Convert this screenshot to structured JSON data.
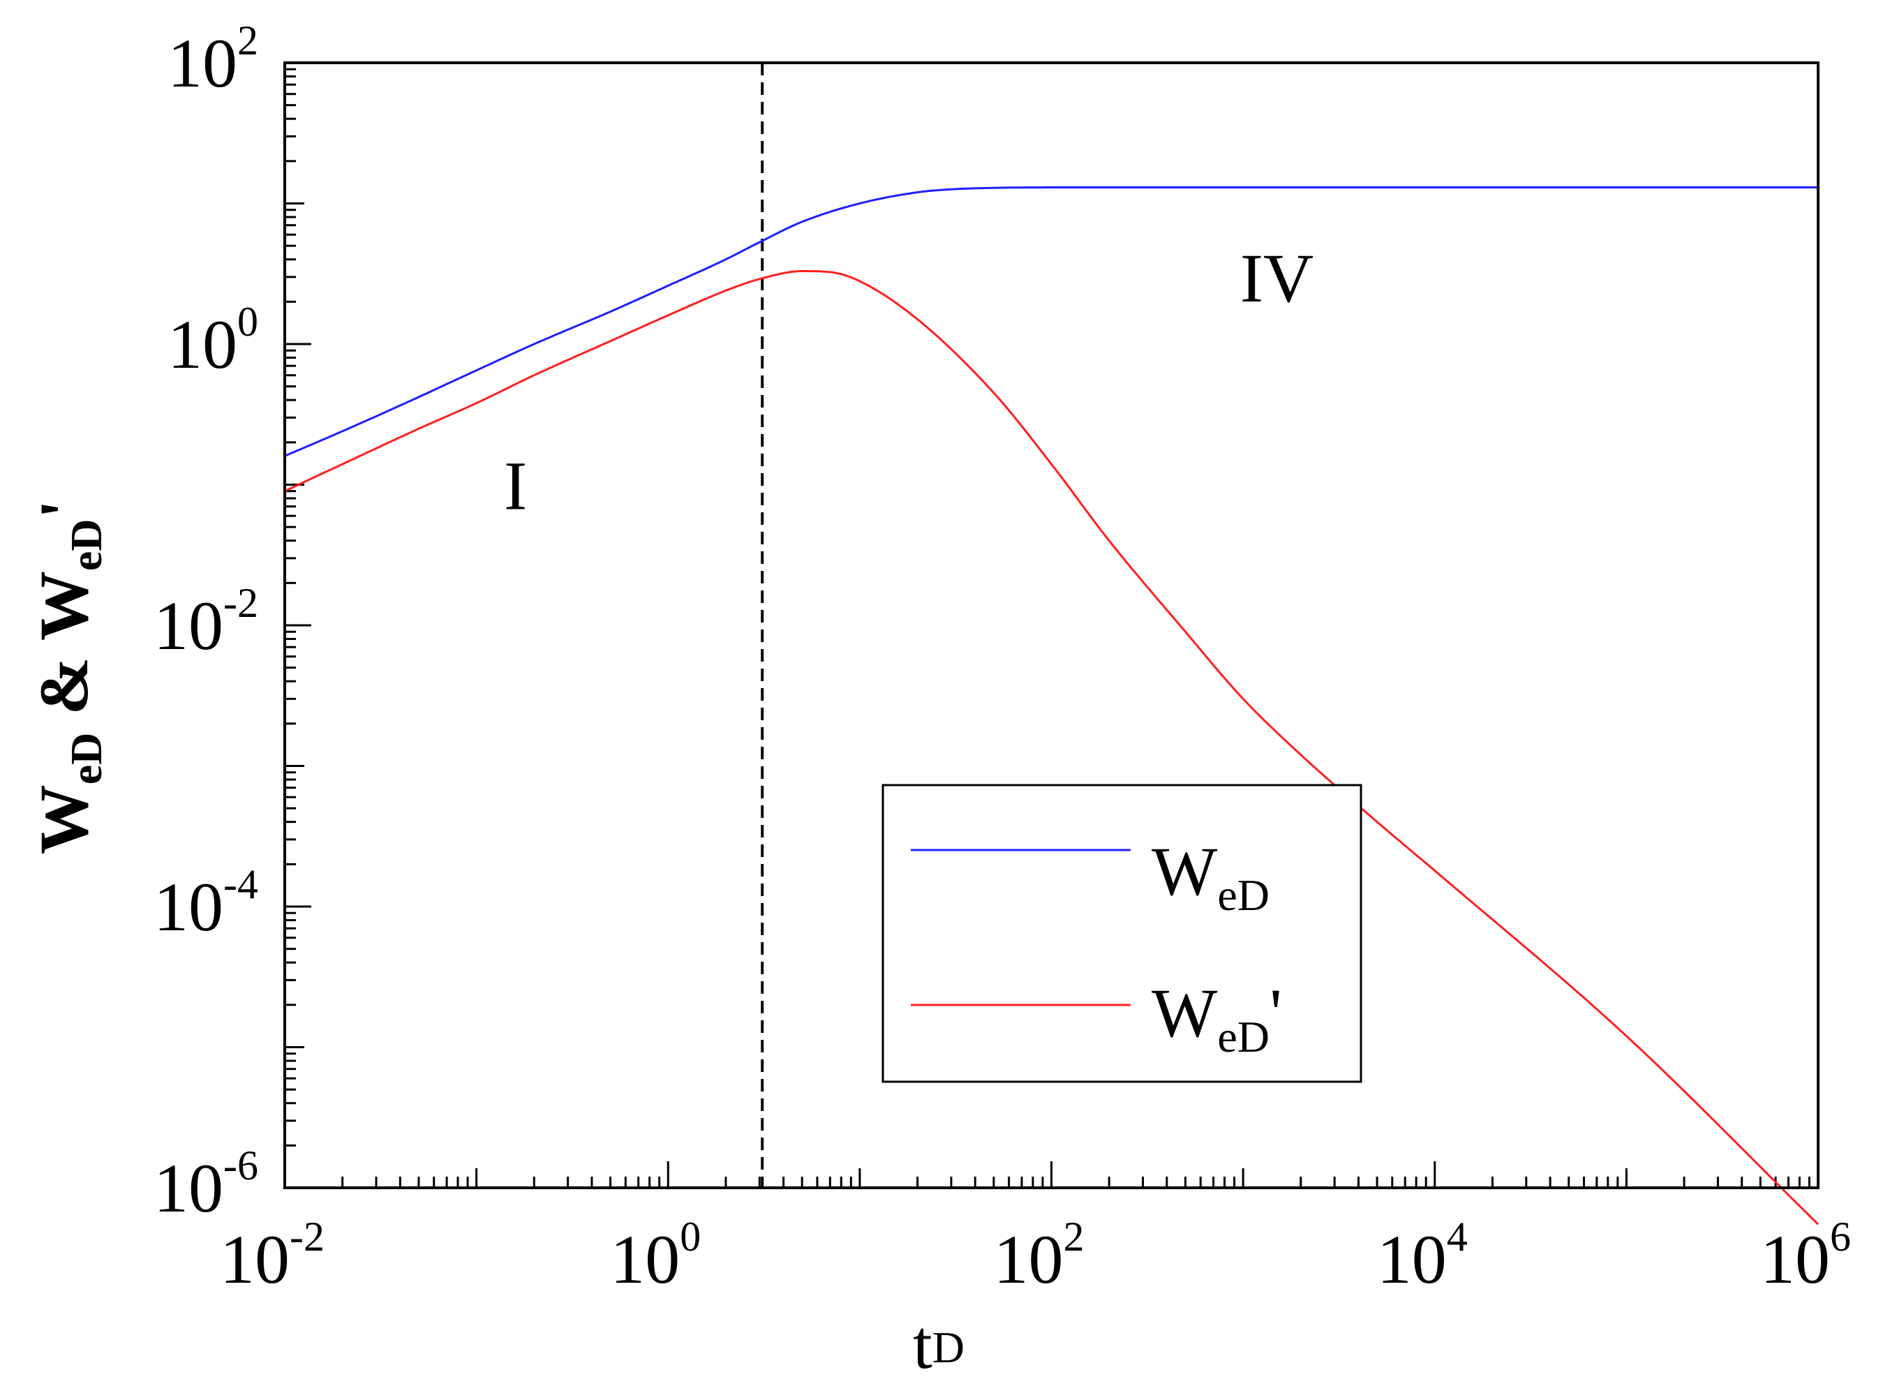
{
  "chart_data": {
    "type": "line",
    "x_scale": "log",
    "y_scale": "log",
    "xlim": [
      0.01,
      1000000
    ],
    "ylim": [
      1e-06,
      100
    ],
    "x_ticks": [
      {
        "value": 0.01,
        "base": "10",
        "exp": "-2"
      },
      {
        "value": 1,
        "base": "10",
        "exp": "0"
      },
      {
        "value": 100,
        "base": "10",
        "exp": "2"
      },
      {
        "value": 10000,
        "base": "10",
        "exp": "4"
      },
      {
        "value": 1000000,
        "base": "10",
        "exp": "6"
      }
    ],
    "y_ticks": [
      {
        "value": 1e-06,
        "base": "10",
        "exp": "-6"
      },
      {
        "value": 0.0001,
        "base": "10",
        "exp": "-4"
      },
      {
        "value": 0.01,
        "base": "10",
        "exp": "-2"
      },
      {
        "value": 1,
        "base": "10",
        "exp": "0"
      },
      {
        "value": 100,
        "base": "10",
        "exp": "2"
      }
    ],
    "xlabel": {
      "main": "t",
      "sub": "D"
    },
    "ylabel": {
      "w1": "W",
      "sub1": "eD",
      "amp": " & ",
      "w2": "W",
      "sub2": "eD",
      "prime": "'"
    },
    "vertical_line": {
      "x": 3.1,
      "style": "dashed",
      "color": "#000000"
    },
    "region_labels": [
      {
        "text": "I",
        "x": 0.16,
        "y": 0.1
      },
      {
        "text": "IV",
        "x": 1500,
        "y": 3
      }
    ],
    "legend": {
      "position": "lower-center",
      "entries": [
        {
          "main": "W",
          "sub": "eD",
          "suffix": "",
          "color": "#1f1fff"
        },
        {
          "main": "W",
          "sub": "eD",
          "suffix": "'",
          "color": "#ff2020"
        }
      ]
    },
    "series": [
      {
        "name": "WeD",
        "color": "#1f1fff",
        "x": [
          0.01,
          0.02,
          0.05,
          0.1,
          0.2,
          0.5,
          1,
          2,
          3,
          5,
          10,
          20,
          30,
          50,
          100,
          1000,
          10000,
          100000,
          1000000
        ],
        "y": [
          0.16,
          0.24,
          0.42,
          0.65,
          1.0,
          1.7,
          2.6,
          4.0,
          5.3,
          7.4,
          10.0,
          12.0,
          12.6,
          12.9,
          13.0,
          13.0,
          13.0,
          13.0,
          13.0
        ]
      },
      {
        "name": "WeD'",
        "color": "#ff2020",
        "x": [
          0.01,
          0.02,
          0.05,
          0.1,
          0.2,
          0.5,
          1,
          2,
          3,
          5,
          7,
          10,
          20,
          50,
          100,
          200,
          500,
          1000,
          2000,
          5000,
          10000,
          100000,
          1000000
        ],
        "y": [
          0.09,
          0.14,
          0.25,
          0.38,
          0.6,
          1.05,
          1.6,
          2.4,
          2.9,
          3.3,
          3.25,
          2.8,
          1.5,
          0.45,
          0.14,
          0.04,
          0.009,
          0.003,
          0.0012,
          0.0004,
          0.00018,
          1.2e-05,
          5.5e-07
        ]
      }
    ]
  }
}
